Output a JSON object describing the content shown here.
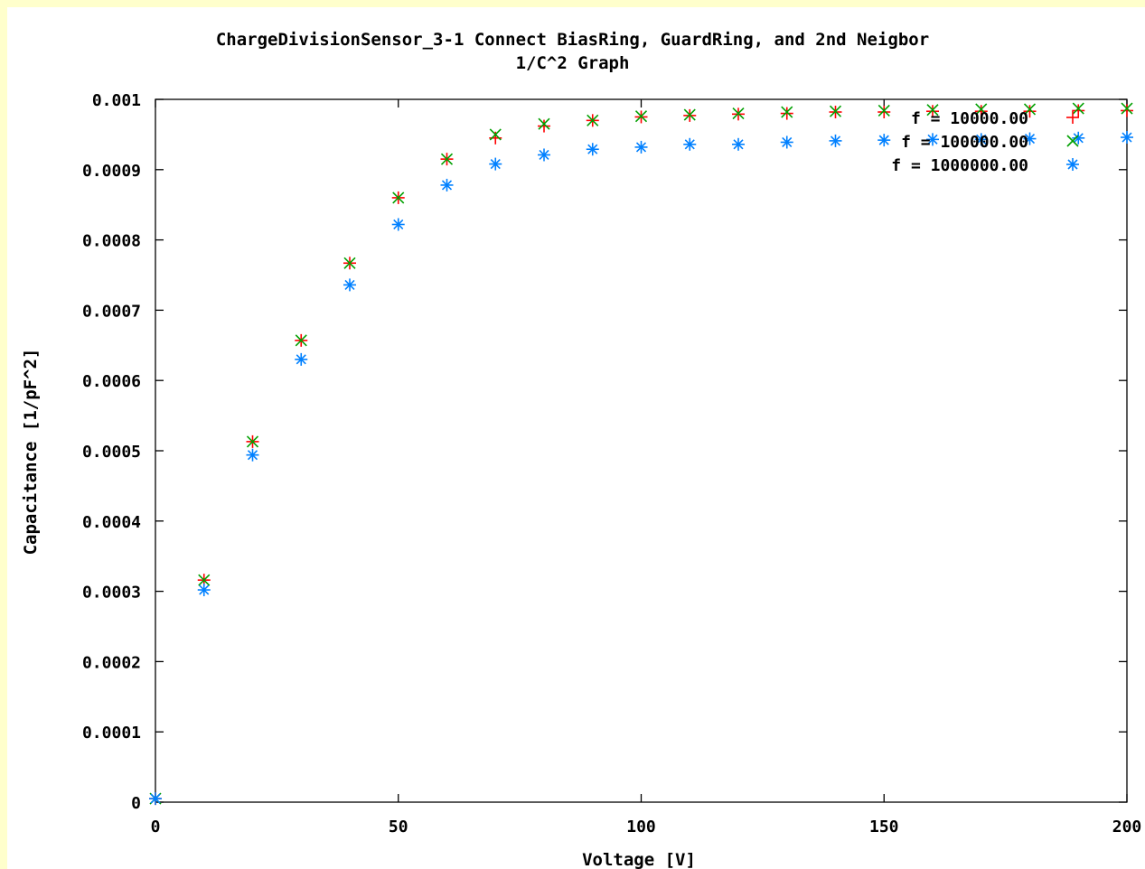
{
  "chart_data": {
    "type": "scatter",
    "title": "ChargeDivisionSensor_3-1 Connect BiasRing, GuardRing, and 2nd Neigbor",
    "subtitle": "1/C^2 Graph",
    "xlabel": "Voltage [V]",
    "ylabel": "Capacitance [1/pF^2]",
    "xlim": [
      0,
      200
    ],
    "ylim": [
      0,
      0.001
    ],
    "x_ticks": [
      0,
      50,
      100,
      150,
      200
    ],
    "x_tick_labels": [
      "0",
      "50",
      "100",
      "150",
      "200"
    ],
    "y_ticks": [
      0,
      0.0001,
      0.0002,
      0.0003,
      0.0004,
      0.0005,
      0.0006,
      0.0007,
      0.0008,
      0.0009,
      0.001
    ],
    "y_tick_labels": [
      "0",
      "0.0001",
      "0.0002",
      "0.0003",
      "0.0004",
      "0.0005",
      "0.0006",
      "0.0007",
      "0.0008",
      "0.0009",
      "0.001"
    ],
    "grid": false,
    "legend_position": "top-right",
    "x": [
      0,
      10,
      20,
      30,
      40,
      50,
      60,
      70,
      80,
      90,
      100,
      110,
      120,
      130,
      140,
      150,
      160,
      170,
      180,
      190,
      200
    ],
    "series": [
      {
        "name": "f = 10000.00",
        "marker": "plus",
        "color": "#ff0000",
        "values": [
          5e-06,
          0.000316,
          0.000513,
          0.000657,
          0.000767,
          0.00086,
          0.000915,
          0.000945,
          0.000962,
          0.00097,
          0.000975,
          0.000977,
          0.000979,
          0.00098,
          0.000982,
          0.000982,
          0.000983,
          0.000983,
          0.000983,
          0.000984,
          0.000984
        ]
      },
      {
        "name": "f = 100000.00",
        "marker": "cross",
        "color": "#00a000",
        "values": [
          5e-06,
          0.000316,
          0.000513,
          0.000657,
          0.000767,
          0.00086,
          0.000915,
          0.00095,
          0.000965,
          0.00097,
          0.000976,
          0.000978,
          0.00098,
          0.000982,
          0.000983,
          0.000984,
          0.000985,
          0.000986,
          0.000986,
          0.000987,
          0.000987
        ]
      },
      {
        "name": "f = 1000000.00",
        "marker": "star",
        "color": "#0080ff",
        "values": [
          5e-06,
          0.000302,
          0.000494,
          0.00063,
          0.000736,
          0.000822,
          0.000878,
          0.000908,
          0.000921,
          0.000929,
          0.000932,
          0.000936,
          0.000936,
          0.000939,
          0.000941,
          0.000942,
          0.000943,
          0.000943,
          0.000944,
          0.000945,
          0.000946
        ]
      }
    ]
  }
}
